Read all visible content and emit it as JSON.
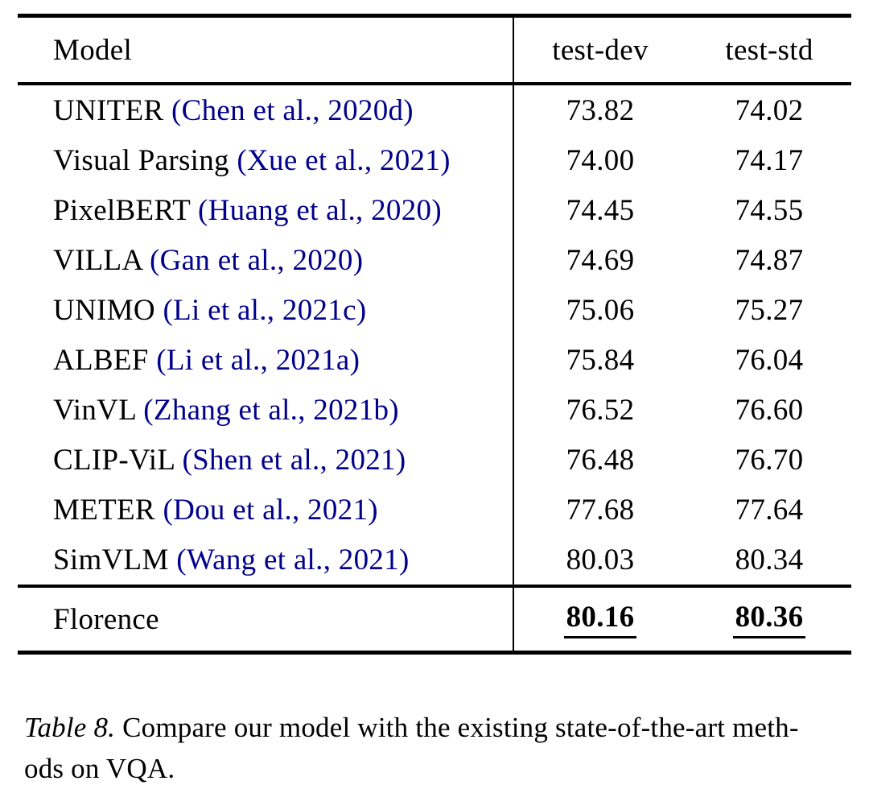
{
  "table": {
    "headers": {
      "model": "Model",
      "test_dev": "test-dev",
      "test_std": "test-std"
    },
    "rows": [
      {
        "model": "UNITER",
        "citation": "(Chen et al., 2020d)",
        "test_dev": "73.82",
        "test_std": "74.02"
      },
      {
        "model": "Visual Parsing",
        "citation": "(Xue et al., 2021)",
        "test_dev": "74.00",
        "test_std": "74.17"
      },
      {
        "model": "PixelBERT",
        "citation": "(Huang et al., 2020)",
        "test_dev": "74.45",
        "test_std": "74.55"
      },
      {
        "model": "VILLA",
        "citation": "(Gan et al., 2020)",
        "test_dev": "74.69",
        "test_std": "74.87"
      },
      {
        "model": "UNIMO",
        "citation": "(Li et al., 2021c)",
        "test_dev": "75.06",
        "test_std": "75.27"
      },
      {
        "model": "ALBEF",
        "citation": "(Li et al., 2021a)",
        "test_dev": "75.84",
        "test_std": "76.04"
      },
      {
        "model": "VinVL",
        "citation": "(Zhang et al., 2021b)",
        "test_dev": "76.52",
        "test_std": "76.60"
      },
      {
        "model": "CLIP-ViL",
        "citation": "(Shen et al., 2021)",
        "test_dev": "76.48",
        "test_std": "76.70"
      },
      {
        "model": "METER",
        "citation": "(Dou et al., 2021)",
        "test_dev": "77.68",
        "test_std": "77.64"
      },
      {
        "model": "SimVLM",
        "citation": "(Wang et al., 2021)",
        "test_dev": "80.03",
        "test_std": "80.34"
      }
    ],
    "highlight_row": {
      "model": "Florence",
      "test_dev": "80.16",
      "test_std": "80.36"
    }
  },
  "caption": {
    "label": "Table 8.",
    "line1_rest": " Compare our model with the existing state-of-the-art meth-",
    "line2": "ods on VQA."
  },
  "colors": {
    "text": "#000000",
    "citation_link": "#00008b",
    "rule": "#000000"
  }
}
